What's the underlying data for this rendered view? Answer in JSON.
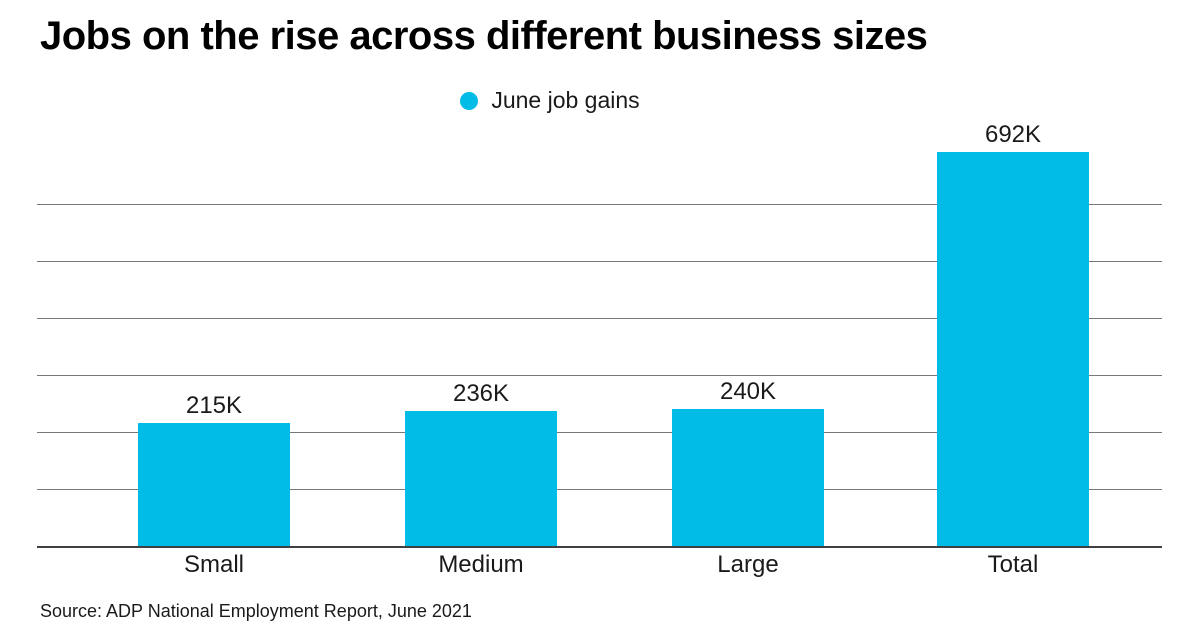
{
  "chart_data": {
    "type": "bar",
    "title": "Jobs on the rise across different business sizes",
    "legend": [
      {
        "label": "June job gains",
        "color": "#00bce6"
      }
    ],
    "legend_position": "top-center",
    "categories": [
      "Small",
      "Medium",
      "Large",
      "Total"
    ],
    "values": [
      215,
      236,
      240,
      692
    ],
    "value_labels": [
      "215K",
      "236K",
      "240K",
      "692K"
    ],
    "unit": "K",
    "xlabel": "",
    "ylabel": "",
    "ylim": [
      0,
      700
    ],
    "grid": {
      "interval": 100,
      "color": "#77787b",
      "baseline_color": "#404042",
      "y_tick_labels_visible": false
    },
    "source": "Source: ADP National Employment Report, June 2021"
  },
  "colors": {
    "bar": "#00bce6",
    "title_text": "#000000",
    "body_text": "#1a1a1a",
    "background": "#ffffff"
  }
}
